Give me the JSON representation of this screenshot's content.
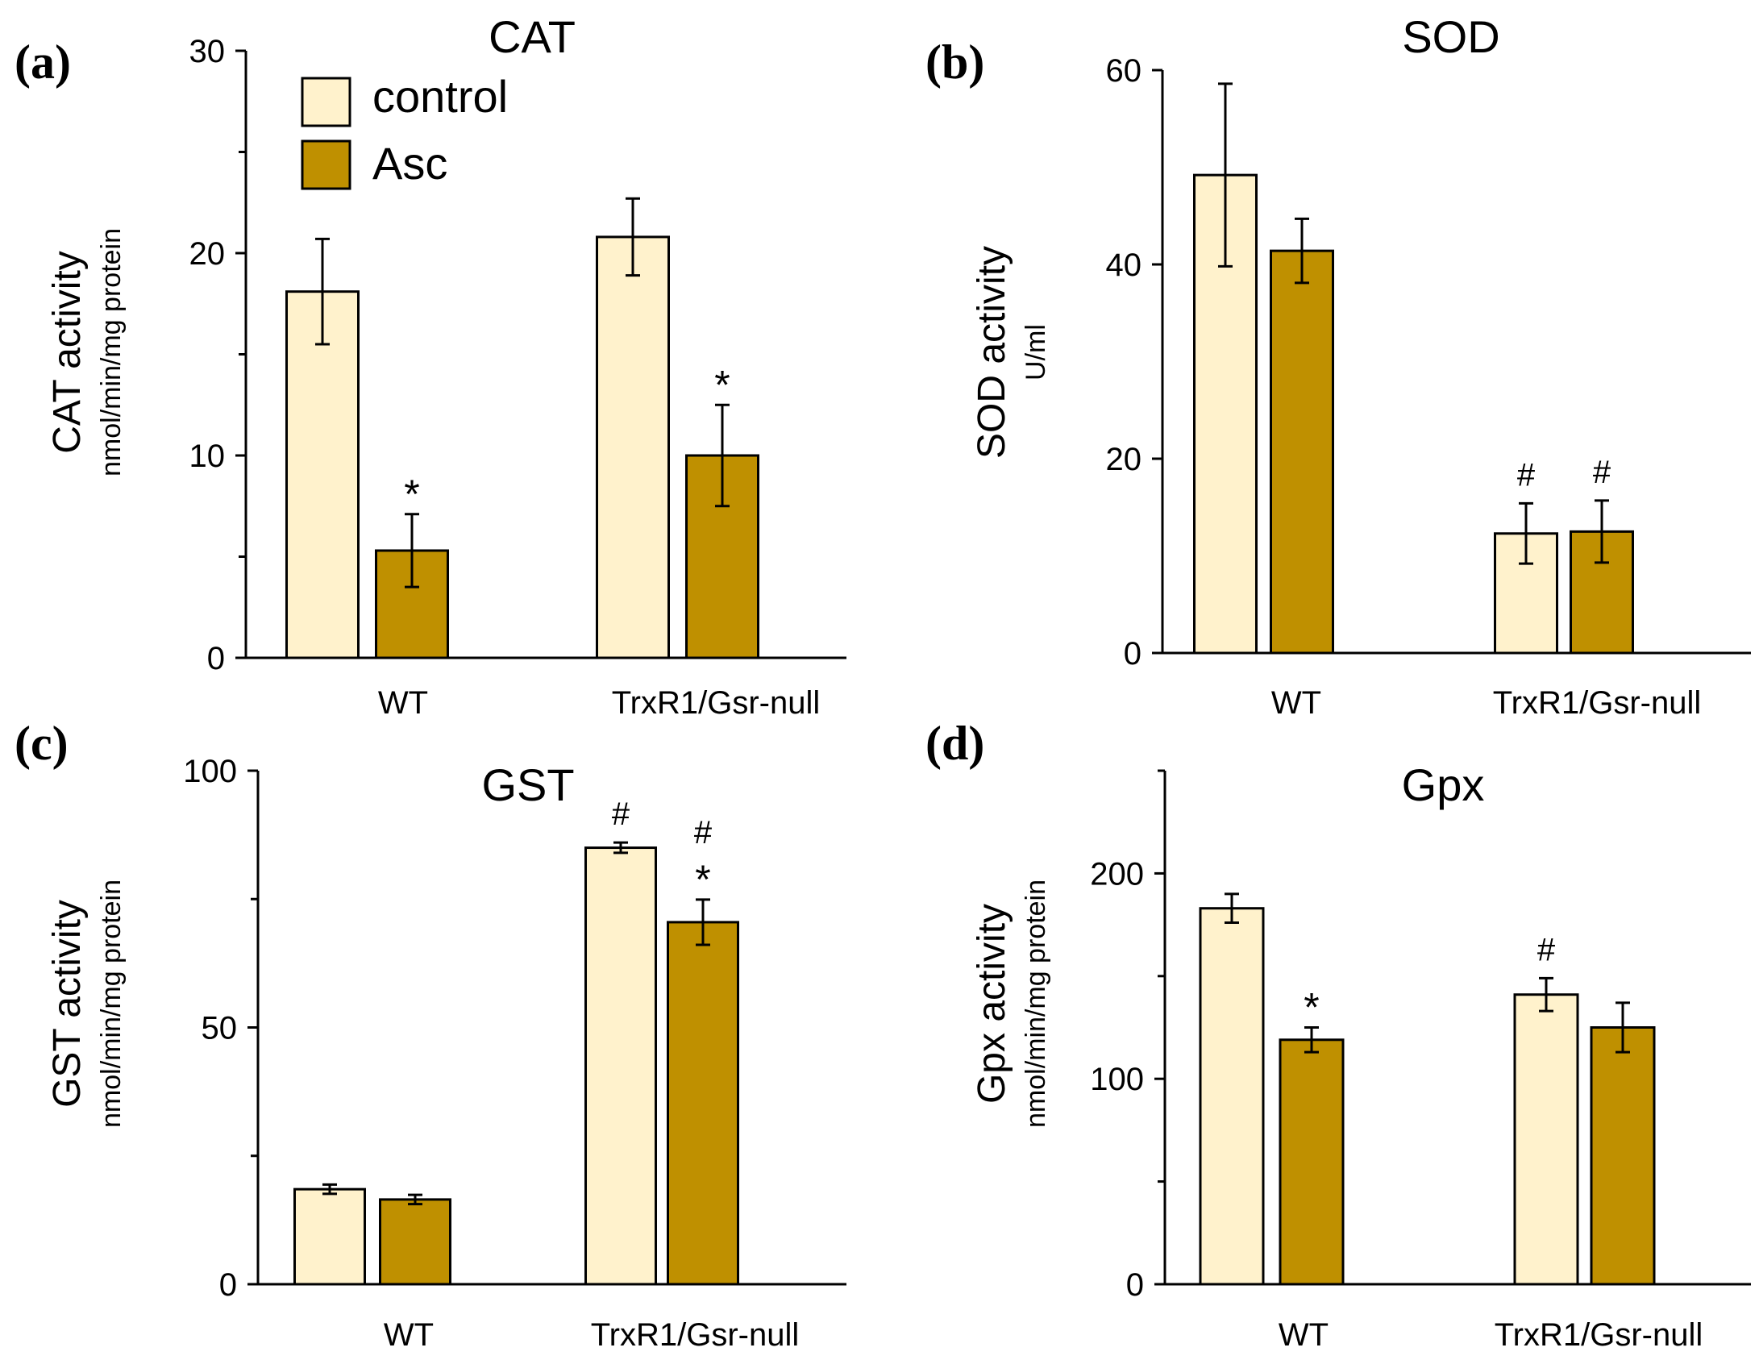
{
  "legend": {
    "entries": [
      {
        "label": "control",
        "color": "#FFF2CC"
      },
      {
        "label": "Asc",
        "color": "#BF9000"
      }
    ]
  },
  "colors": {
    "control": "#FFF2CC",
    "asc": "#BF9000",
    "outline": "#000000"
  },
  "chart_data": [
    {
      "panel": "(a)",
      "type": "bar",
      "title": "CAT",
      "ylabel": "CAT activity",
      "ylabel_unit": "nmol/min/mg protein",
      "categories": [
        "WT",
        "TrxR1/Gsr-null"
      ],
      "ylim": [
        0,
        30
      ],
      "yticks": [
        0,
        10,
        20,
        30
      ],
      "minor_ticks": [
        5,
        15,
        25
      ],
      "series": [
        {
          "name": "control",
          "values": [
            18.1,
            20.8
          ],
          "errors": [
            2.6,
            1.9
          ],
          "labels": [
            [],
            []
          ]
        },
        {
          "name": "Asc",
          "values": [
            5.3,
            10.0
          ],
          "errors": [
            1.8,
            2.5
          ],
          "labels": [
            [
              "*"
            ],
            [
              "*"
            ]
          ]
        }
      ]
    },
    {
      "panel": "(b)",
      "type": "bar",
      "title": "SOD",
      "ylabel": "SOD activity",
      "ylabel_unit": "U/ml",
      "categories": [
        "WT",
        "TrxR1/Gsr-null"
      ],
      "ylim": [
        0,
        60
      ],
      "yticks": [
        0,
        20,
        40,
        60
      ],
      "minor_ticks": [],
      "series": [
        {
          "name": "control",
          "values": [
            49.2,
            12.3
          ],
          "errors": [
            9.4,
            3.1
          ],
          "labels": [
            [],
            [
              "#"
            ]
          ]
        },
        {
          "name": "Asc",
          "values": [
            41.4,
            12.5
          ],
          "errors": [
            3.3,
            3.2
          ],
          "labels": [
            [],
            [
              "#"
            ]
          ]
        }
      ]
    },
    {
      "panel": "(c)",
      "type": "bar",
      "title": "GST",
      "ylabel": "GST activity",
      "ylabel_unit": "nmol/min/mg protein",
      "categories": [
        "WT",
        "TrxR1/Gsr-null"
      ],
      "ylim": [
        0,
        100
      ],
      "yticks": [
        0,
        50,
        100
      ],
      "minor_ticks": [
        25,
        75
      ],
      "series": [
        {
          "name": "control",
          "values": [
            18.5,
            85.0
          ],
          "errors": [
            0.9,
            1.0
          ],
          "labels": [
            [],
            [
              "#"
            ]
          ]
        },
        {
          "name": "Asc",
          "values": [
            16.5,
            70.5
          ],
          "errors": [
            0.9,
            4.4
          ],
          "labels": [
            [],
            [
              "#",
              "*"
            ]
          ]
        }
      ]
    },
    {
      "panel": "(d)",
      "type": "bar",
      "title": "Gpx",
      "ylabel": "Gpx activity",
      "ylabel_unit": "nmol/min/mg protein",
      "categories": [
        "WT",
        "TrxR1/Gsr-null"
      ],
      "ylim": [
        0,
        250
      ],
      "yticks": [
        0,
        100,
        200
      ],
      "minor_ticks": [
        50,
        150,
        250
      ],
      "series": [
        {
          "name": "control",
          "values": [
            183,
            141
          ],
          "errors": [
            7,
            8
          ],
          "labels": [
            [],
            [
              "#"
            ]
          ]
        },
        {
          "name": "Asc",
          "values": [
            119,
            125
          ],
          "errors": [
            6,
            12
          ],
          "labels": [
            [
              "*"
            ],
            []
          ]
        }
      ]
    }
  ]
}
